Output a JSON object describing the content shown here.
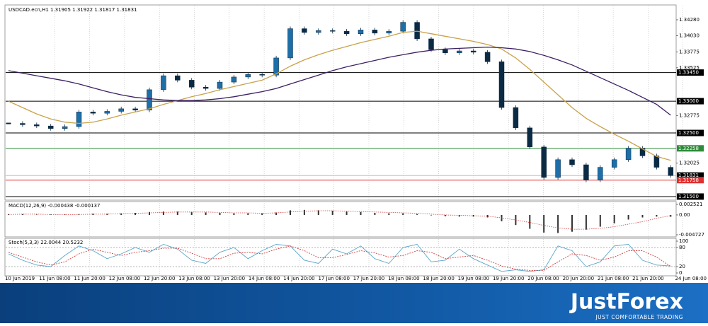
{
  "chart_data": [
    {
      "type": "candlestick",
      "title": "USDCAD.ecn,H1 1.31905 1.31922 1.31817 1.31831",
      "up_color": "#1e6ea7",
      "down_color": "#0b2a44",
      "values": [
        1.3265,
        1.3263,
        1.3261,
        1.3257,
        1.326,
        1.3283,
        1.3281,
        1.3284,
        1.3288,
        1.3286,
        1.3318,
        1.334,
        1.3333,
        1.3322,
        1.332,
        1.333,
        1.3338,
        1.3342,
        1.3341,
        1.3368,
        1.3414,
        1.3408,
        1.3411,
        1.341,
        1.3406,
        1.3412,
        1.3407,
        1.341,
        1.3424,
        1.3398,
        1.3381,
        1.3376,
        1.3379,
        1.3377,
        1.3362,
        1.329,
        1.3258,
        1.3228,
        1.318,
        1.3208,
        1.32,
        1.3176,
        1.3196,
        1.3208,
        1.3226,
        1.3214,
        1.3196,
        1.3183
      ],
      "series": [
        {
          "color": "#c9a24a",
          "values": [
            1.33,
            1.329,
            1.328,
            1.3272,
            1.3267,
            1.3265,
            1.3267,
            1.3272,
            1.3278,
            1.3283,
            1.3288,
            1.3295,
            1.3301,
            1.3307,
            1.3312,
            1.3318,
            1.3323,
            1.3328,
            1.3333,
            1.3343,
            1.3355,
            1.3365,
            1.3373,
            1.338,
            1.3386,
            1.3392,
            1.3397,
            1.3402,
            1.3408,
            1.341,
            1.3406,
            1.3402,
            1.3398,
            1.3394,
            1.3389,
            1.3382,
            1.3368,
            1.335,
            1.333,
            1.331,
            1.329,
            1.3273,
            1.326,
            1.3248,
            1.3237,
            1.3225,
            1.3213,
            1.3207
          ]
        },
        {
          "color": "#3b1f63",
          "values": [
            1.3348,
            1.3344,
            1.334,
            1.3336,
            1.3332,
            1.3327,
            1.3321,
            1.3315,
            1.331,
            1.3306,
            1.3304,
            1.3302,
            1.3301,
            1.3301,
            1.3302,
            1.3304,
            1.3307,
            1.3311,
            1.3315,
            1.332,
            1.3327,
            1.3334,
            1.3341,
            1.3348,
            1.3354,
            1.3359,
            1.3364,
            1.3369,
            1.3373,
            1.3377,
            1.338,
            1.3382,
            1.3383,
            1.3384,
            1.3385,
            1.3384,
            1.3382,
            1.3378,
            1.3372,
            1.3365,
            1.3357,
            1.3347,
            1.3337,
            1.3327,
            1.3317,
            1.3306,
            1.3295,
            1.3278
          ]
        }
      ],
      "levels": [
        {
          "value": 1.3345,
          "label": "1.33450",
          "color": "#000000"
        },
        {
          "value": 1.33,
          "label": "1.33000",
          "color": "#000000"
        },
        {
          "value": 1.325,
          "label": "1.32500",
          "color": "#000000"
        },
        {
          "value": 1.32258,
          "label": "1.32258",
          "color": "#2e8b3a"
        },
        {
          "value": 1.31831,
          "label": "1.31831",
          "color": "#b8c0c8"
        },
        {
          "value": 1.31758,
          "label": "1.31758",
          "color": "#e03030"
        },
        {
          "value": 1.315,
          "label": "1.31500",
          "color": "#000000"
        }
      ],
      "ylim": [
        1.31455,
        1.34502
      ],
      "yticks": [
        {
          "value": 1.3428,
          "label": "1.34280"
        },
        {
          "value": 1.3403,
          "label": "1.34030"
        },
        {
          "value": 1.33775,
          "label": "1.33775"
        },
        {
          "value": 1.33525,
          "label": "1.33525"
        },
        {
          "value": 1.32775,
          "label": "1.32775"
        },
        {
          "value": 1.32025,
          "label": "1.32025"
        }
      ],
      "x_labels": [
        "10 Jun 2019",
        "11 Jun 08:00",
        "11 Jun 20:00",
        "12 Jun 08:00",
        "12 Jun 20:00",
        "13 Jun 08:00",
        "13 Jun 20:00",
        "14 Jun 08:00",
        "14 Jun 20:00",
        "17 Jun 08:00",
        "17 Jun 20:00",
        "18 Jun 08:00",
        "18 Jun 20:00",
        "19 Jun 08:00",
        "19 Jun 20:00",
        "20 Jun 08:00",
        "20 Jun 20:00",
        "21 Jun 08:00",
        "21 Jun 20:00",
        "24 Jun 08:00"
      ]
    },
    {
      "type": "macd",
      "title": "MACD(12,26,9) -0.000438 -0.000137",
      "color": "#333333",
      "values": [
        0.0002,
        0.0002,
        0.0001,
        0.0001,
        0.0001,
        0.0002,
        0.0003,
        0.0003,
        0.0004,
        0.0005,
        0.0007,
        0.0008,
        0.0008,
        0.0007,
        0.0006,
        0.0005,
        0.0004,
        0.0004,
        0.0004,
        0.0006,
        0.0011,
        0.0012,
        0.0011,
        0.001,
        0.0008,
        0.0007,
        0.0005,
        0.0004,
        0.0004,
        0.0002,
        -0.0001,
        -0.0003,
        -0.0004,
        -0.0004,
        -0.0006,
        -0.0015,
        -0.0024,
        -0.0033,
        -0.0042,
        -0.0043,
        -0.004,
        -0.0035,
        -0.0028,
        -0.002,
        -0.0011,
        -0.0006,
        -0.0004,
        -0.000438
      ],
      "series": [
        {
          "color": "#d04040",
          "values": [
            0.0001,
            0.0002,
            0.0002,
            0.0001,
            0.0001,
            0.0001,
            0.0002,
            0.0002,
            0.0003,
            0.0004,
            0.0005,
            0.0006,
            0.0007,
            0.0007,
            0.0007,
            0.0006,
            0.0005,
            0.0005,
            0.0004,
            0.0005,
            0.0007,
            0.0009,
            0.001,
            0.001,
            0.0009,
            0.0008,
            0.0007,
            0.0006,
            0.0005,
            0.0004,
            0.0002,
            0.0,
            -0.0001,
            -0.0002,
            -0.0003,
            -0.0007,
            -0.0012,
            -0.0018,
            -0.0025,
            -0.0031,
            -0.0034,
            -0.0034,
            -0.0032,
            -0.0028,
            -0.0022,
            -0.0016,
            -0.0008,
            -0.000137
          ]
        }
      ],
      "ylim": [
        -0.004727,
        0.002521
      ],
      "yticks": [
        0.002521,
        {
          "value": 0,
          "label": "0.00"
        },
        -0.004727
      ]
    },
    {
      "type": "stochastic",
      "title": "Stoch(5,3,3) 22.0044 20.5232",
      "series": [
        {
          "color": "#5aa5c8",
          "values": [
            60,
            40,
            25,
            20,
            55,
            85,
            70,
            45,
            60,
            80,
            65,
            90,
            75,
            40,
            30,
            65,
            80,
            45,
            70,
            90,
            85,
            40,
            30,
            75,
            60,
            85,
            45,
            30,
            80,
            90,
            35,
            40,
            75,
            45,
            25,
            5,
            10,
            5,
            10,
            85,
            70,
            20,
            35,
            85,
            90,
            40,
            25,
            22.0044
          ]
        },
        {
          "color": "#d04040",
          "values": [
            65,
            50,
            35,
            25,
            35,
            60,
            75,
            65,
            55,
            65,
            70,
            78,
            78,
            62,
            45,
            45,
            62,
            65,
            60,
            75,
            85,
            70,
            48,
            48,
            58,
            70,
            63,
            50,
            55,
            70,
            65,
            45,
            50,
            55,
            40,
            22,
            12,
            8,
            8,
            35,
            60,
            55,
            40,
            50,
            70,
            70,
            50,
            20.5232
          ]
        }
      ],
      "levels": [
        80,
        20
      ],
      "ylim": [
        0,
        100
      ],
      "yticks": [
        100,
        80,
        20,
        0
      ]
    }
  ],
  "banner": {
    "brand": "JustForex",
    "tagline": "JUST COMFORTABLE TRADING"
  }
}
